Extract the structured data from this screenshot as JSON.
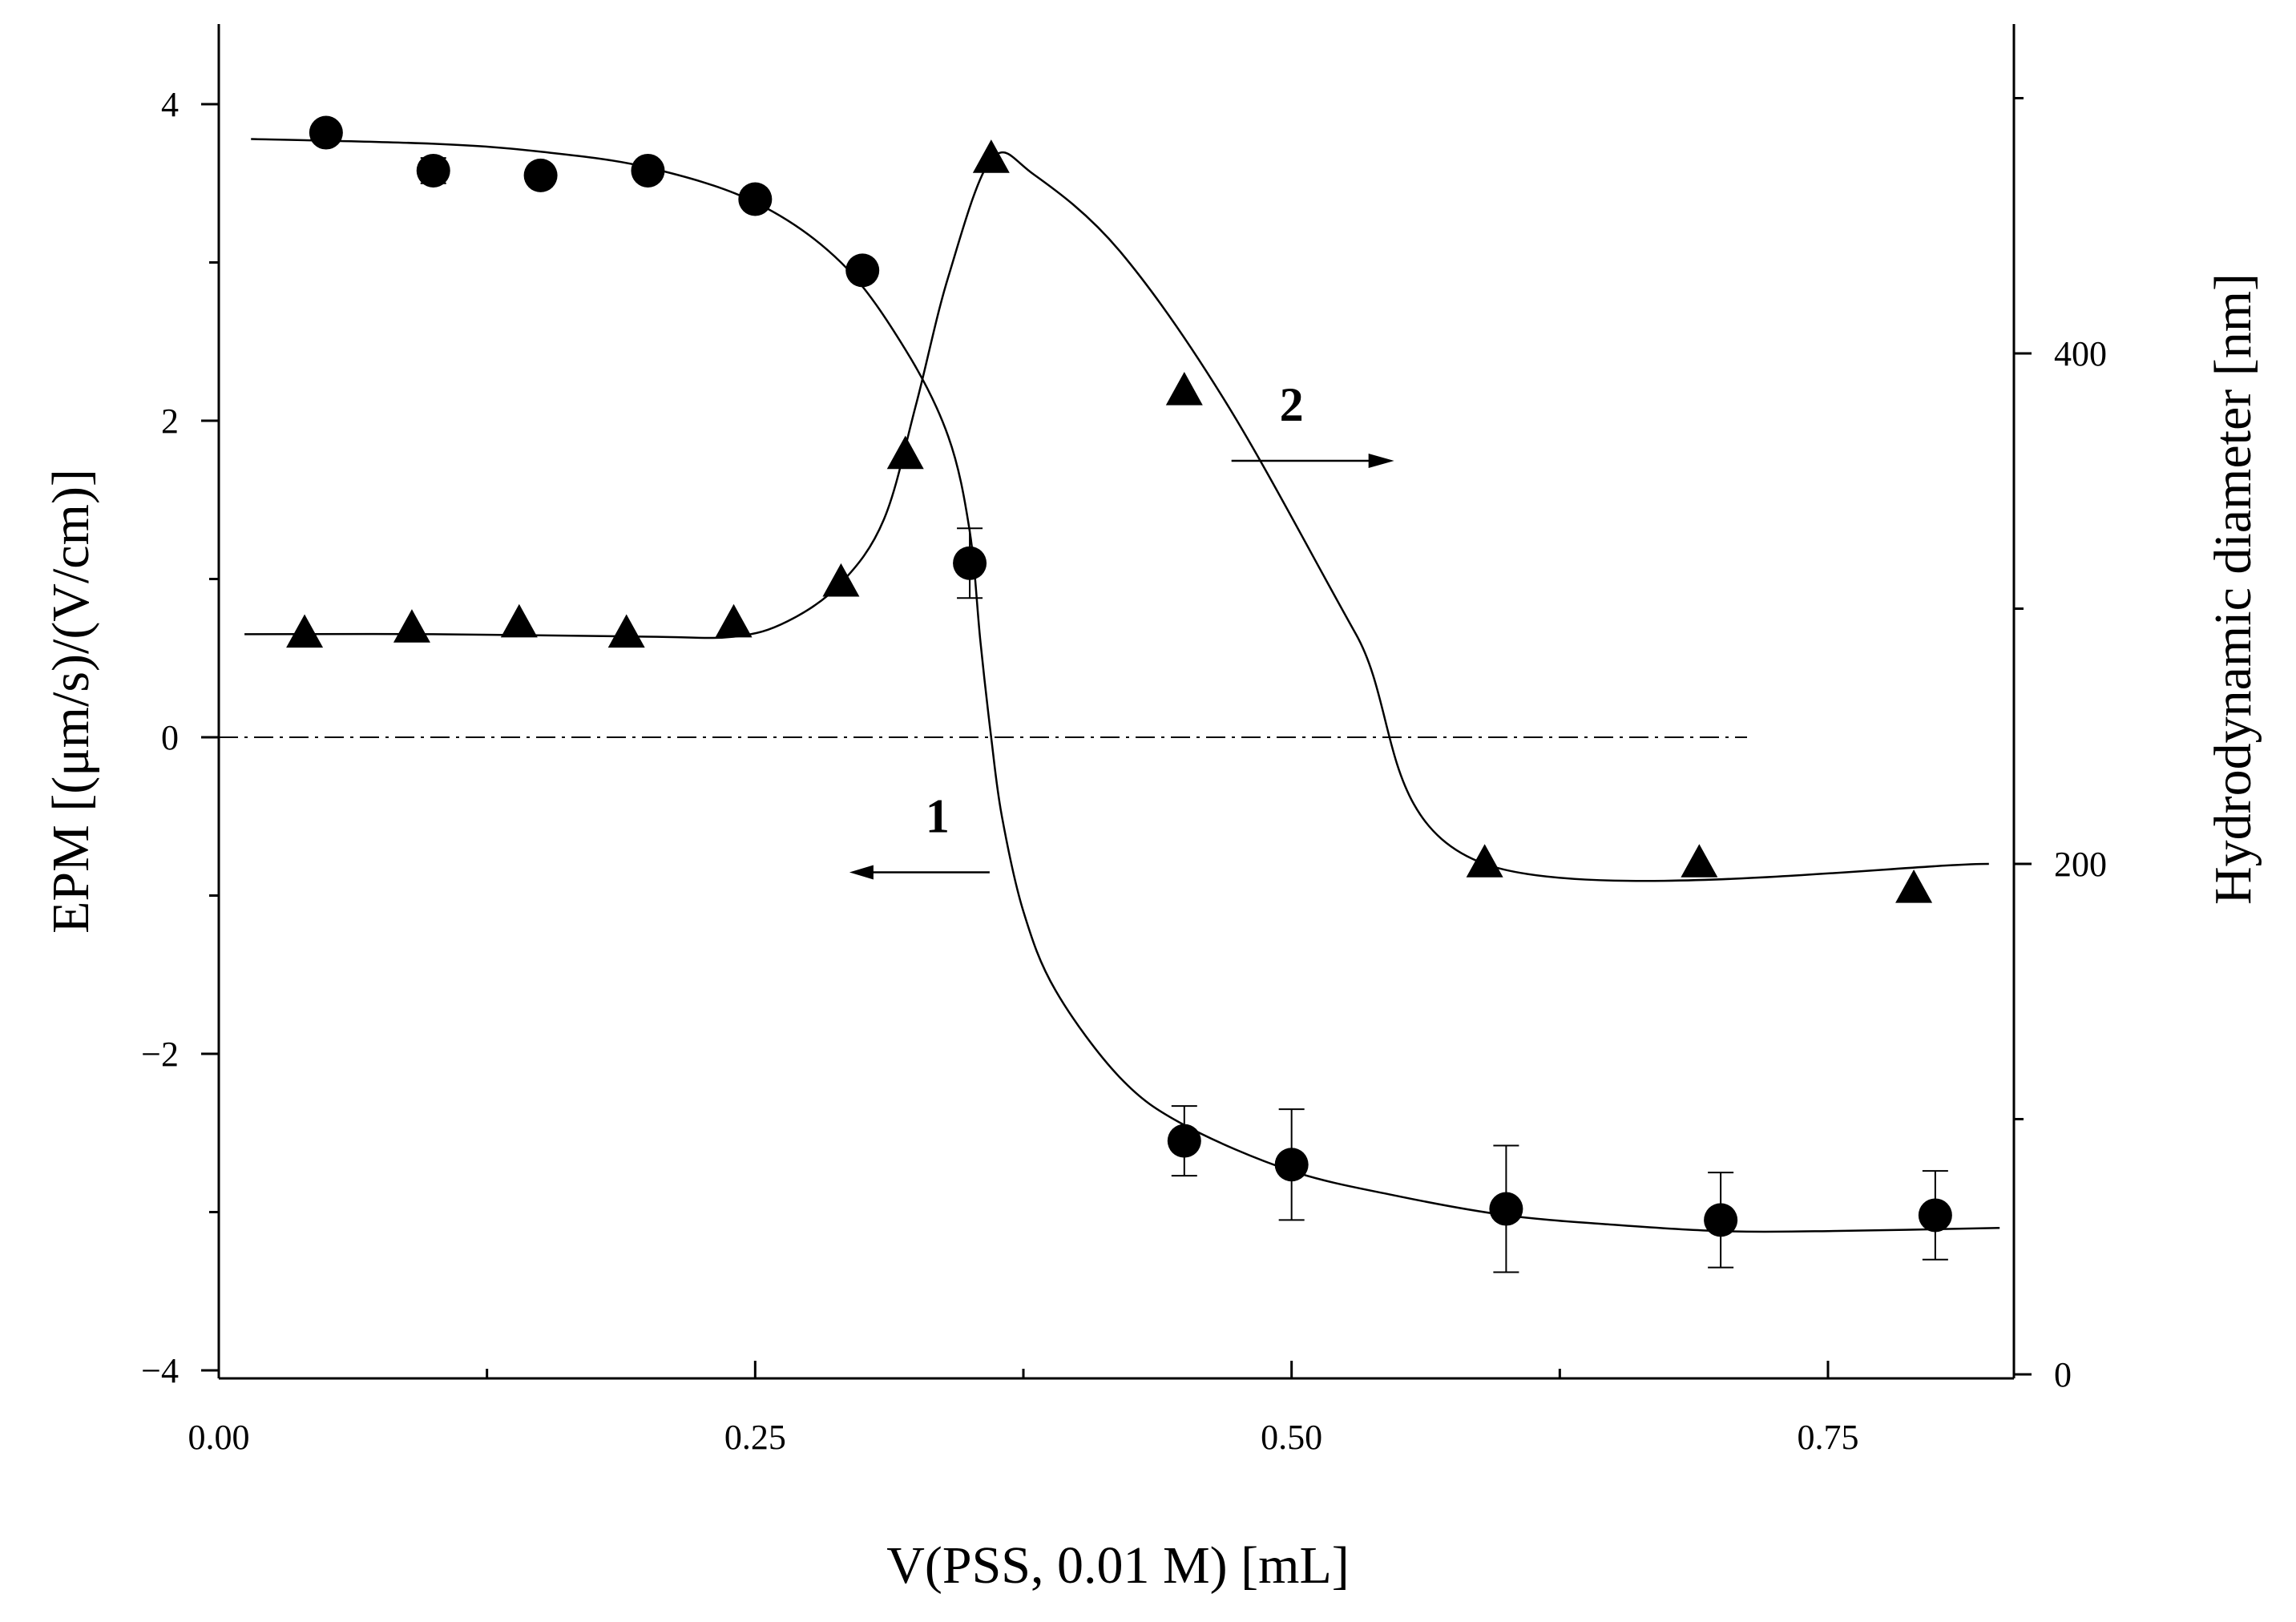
{
  "chart_data": {
    "type": "scatter",
    "title": "",
    "xlabel": "V(PSS, 0.01 M) [mL]",
    "ylabel_left": "EPM  [(μm/s)/(V/cm)]",
    "ylabel_right": "Hydrodynamic diameter  [nm]",
    "xlim": [
      0.0,
      0.835
    ],
    "ylim_left": [
      -4,
      4.5
    ],
    "ylim_right": [
      0,
      520
    ],
    "x_ticks": [
      {
        "value": 0.0,
        "label": "0.00"
      },
      {
        "value": 0.25,
        "label": "0.25"
      },
      {
        "value": 0.5,
        "label": "0.50"
      },
      {
        "value": 0.75,
        "label": "0.75"
      }
    ],
    "x_minor_ticks": [
      0.125,
      0.375,
      0.625
    ],
    "y_left_ticks": [
      {
        "value": 4,
        "label": "4"
      },
      {
        "value": 2,
        "label": "2"
      },
      {
        "value": 0,
        "label": "0"
      },
      {
        "value": -2,
        "label": "−2"
      },
      {
        "value": -4,
        "label": "−4"
      }
    ],
    "y_left_minor_ticks": [
      3,
      1,
      -1,
      -3
    ],
    "y_right_ticks": [
      {
        "value": 400,
        "label": "400"
      },
      {
        "value": 200,
        "label": "200"
      },
      {
        "value": 0,
        "label": "0"
      }
    ],
    "y_right_minor_ticks": [
      500,
      300,
      100
    ],
    "zero_line": 0,
    "series": [
      {
        "name": "1",
        "axis": "left",
        "marker": "circle",
        "direction": "left",
        "label_pos": [
          0.335,
          -0.6
        ],
        "x": [
          0.05,
          0.1,
          0.15,
          0.2,
          0.25,
          0.3,
          0.35,
          0.45,
          0.5,
          0.6,
          0.7,
          0.8
        ],
        "y": [
          3.82,
          3.58,
          3.55,
          3.58,
          3.4,
          2.95,
          1.1,
          -2.55,
          -2.7,
          -2.98,
          -3.05,
          -3.02
        ],
        "err": [
          0,
          0.08,
          0,
          0,
          0,
          0,
          0.22,
          0.22,
          0.35,
          0.4,
          0.3,
          0.28
        ],
        "fit": [
          [
            0.015,
            3.78
          ],
          [
            0.1,
            3.75
          ],
          [
            0.15,
            3.7
          ],
          [
            0.2,
            3.6
          ],
          [
            0.25,
            3.38
          ],
          [
            0.29,
            3.0
          ],
          [
            0.32,
            2.45
          ],
          [
            0.34,
            1.9
          ],
          [
            0.35,
            1.3
          ],
          [
            0.355,
            0.6
          ],
          [
            0.36,
            0.0
          ],
          [
            0.365,
            -0.5
          ],
          [
            0.375,
            -1.1
          ],
          [
            0.39,
            -1.6
          ],
          [
            0.42,
            -2.15
          ],
          [
            0.45,
            -2.45
          ],
          [
            0.5,
            -2.74
          ],
          [
            0.55,
            -2.9
          ],
          [
            0.6,
            -3.02
          ],
          [
            0.65,
            -3.08
          ],
          [
            0.7,
            -3.12
          ],
          [
            0.75,
            -3.12
          ],
          [
            0.83,
            -3.1
          ]
        ]
      },
      {
        "name": "2",
        "axis": "right",
        "marker": "triangle",
        "direction": "right",
        "label_pos": [
          0.5,
          2.0
        ],
        "x": [
          0.04,
          0.09,
          0.14,
          0.19,
          0.24,
          0.29,
          0.32,
          0.36,
          0.45,
          0.59,
          0.69,
          0.79
        ],
        "y": [
          290,
          292,
          294,
          290,
          294,
          310,
          360,
          476,
          385,
          200,
          200,
          190
        ],
        "fit": [
          [
            0.012,
            290
          ],
          [
            0.1,
            290
          ],
          [
            0.2,
            289
          ],
          [
            0.24,
            289
          ],
          [
            0.265,
            295
          ],
          [
            0.29,
            310
          ],
          [
            0.31,
            335
          ],
          [
            0.325,
            380
          ],
          [
            0.34,
            430
          ],
          [
            0.36,
            476
          ],
          [
            0.38,
            470
          ],
          [
            0.42,
            440
          ],
          [
            0.47,
            380
          ],
          [
            0.53,
            290
          ],
          [
            0.59,
            200
          ],
          [
            0.825,
            200
          ]
        ]
      }
    ]
  }
}
